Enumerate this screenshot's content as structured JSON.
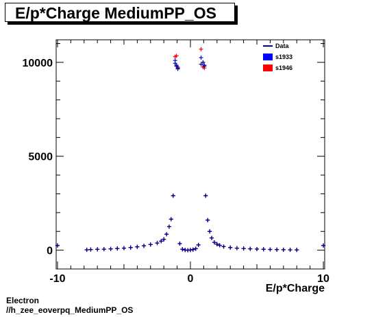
{
  "header": {
    "title": "E/p*Charge MediumPP_OS"
  },
  "footer": {
    "line1": "Electron",
    "line2": "//h_zee_eoverpq_MediumPP_OS"
  },
  "colors": {
    "data": "#000080",
    "s1933": "#0000ff",
    "s1946": "#ff0000",
    "frame": "#000000"
  },
  "chart_data": {
    "type": "scatter",
    "title": "E/p*Charge MediumPP_OS",
    "xlabel": "E/p*Charge",
    "ylabel": "",
    "xlim": [
      -10.1,
      10.1
    ],
    "ylim": [
      -1000,
      11200
    ],
    "x_ticks": [
      -10,
      0,
      10
    ],
    "y_ticks": [
      0,
      5000,
      10000
    ],
    "grid": false,
    "legend": {
      "placement": "top-right",
      "entries": [
        "Data",
        "s1933",
        "s1946"
      ]
    },
    "x": [
      -10.0,
      -7.8,
      -7.5,
      -7.0,
      -6.5,
      -6.0,
      -5.5,
      -5.0,
      -4.5,
      -4.0,
      -3.5,
      -3.0,
      -2.5,
      -2.2,
      -2.0,
      -1.8,
      -1.6,
      -1.45,
      -1.3,
      -1.15,
      -1.05,
      -0.95,
      -0.8,
      -0.6,
      -0.4,
      -0.2,
      0.0,
      0.2,
      0.4,
      0.6,
      0.8,
      0.95,
      1.05,
      1.15,
      1.3,
      1.45,
      1.6,
      1.8,
      2.0,
      2.2,
      2.5,
      3.0,
      3.5,
      4.0,
      4.5,
      5.0,
      5.5,
      6.0,
      6.5,
      7.0,
      7.5,
      8.0,
      10.0
    ],
    "series": [
      {
        "name": "Data",
        "values": [
          250,
          20,
          35,
          45,
          55,
          70,
          90,
          110,
          140,
          180,
          230,
          300,
          380,
          480,
          580,
          850,
          1250,
          1650,
          2900,
          9950,
          9800,
          9650,
          350,
          50,
          10,
          0,
          10,
          30,
          80,
          280,
          9900,
          10000,
          9800,
          2900,
          1600,
          1000,
          650,
          420,
          320,
          260,
          190,
          140,
          110,
          90,
          75,
          60,
          50,
          40,
          30,
          25,
          20,
          15,
          250
        ]
      },
      {
        "name": "s1933",
        "values": [
          250,
          20,
          35,
          45,
          55,
          70,
          90,
          110,
          140,
          180,
          230,
          300,
          380,
          480,
          580,
          850,
          1250,
          1650,
          2900,
          10100,
          9850,
          9700,
          350,
          50,
          10,
          0,
          10,
          30,
          80,
          280,
          10250,
          10000,
          9850,
          2900,
          1600,
          1000,
          650,
          420,
          320,
          260,
          190,
          140,
          110,
          90,
          75,
          60,
          50,
          40,
          30,
          25,
          20,
          15,
          250
        ]
      },
      {
        "name": "s1946",
        "values": [
          250,
          20,
          35,
          45,
          55,
          70,
          90,
          110,
          140,
          180,
          230,
          300,
          380,
          480,
          580,
          850,
          1250,
          1650,
          2900,
          10300,
          10350,
          9750,
          350,
          50,
          10,
          0,
          10,
          30,
          80,
          280,
          10700,
          9750,
          9700,
          2900,
          1600,
          1000,
          650,
          420,
          320,
          260,
          190,
          140,
          110,
          90,
          75,
          60,
          50,
          40,
          30,
          25,
          20,
          15,
          250
        ]
      }
    ]
  }
}
